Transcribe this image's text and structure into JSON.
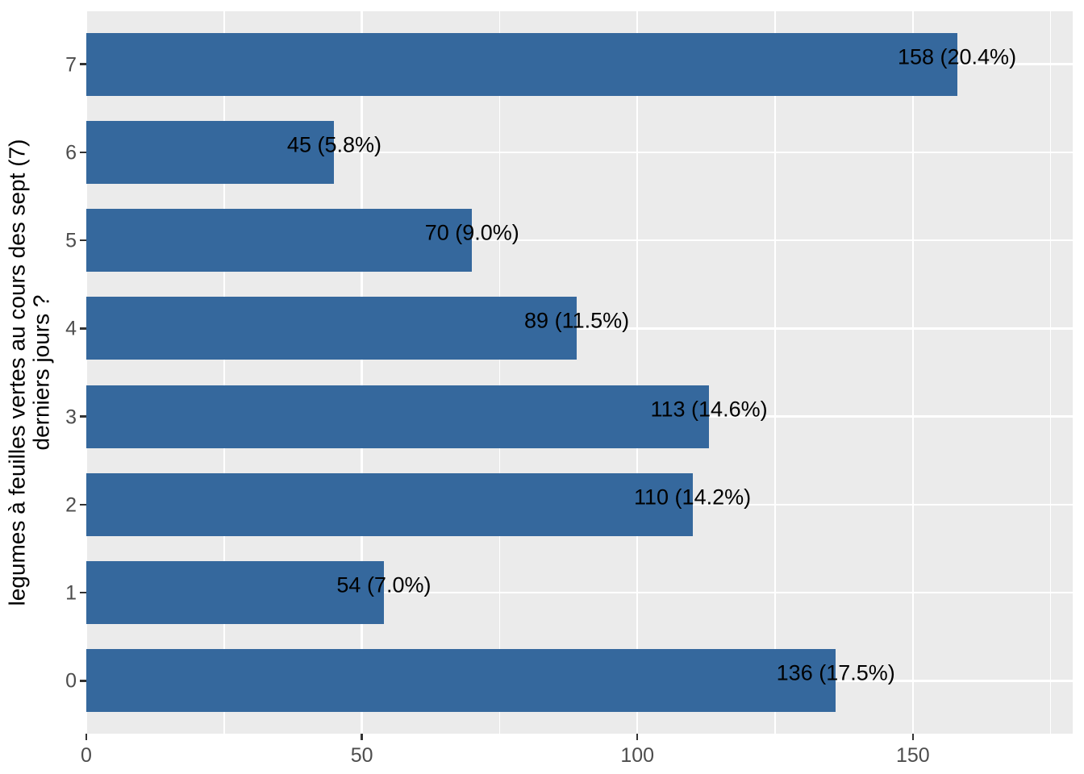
{
  "chart_data": {
    "type": "bar",
    "orientation": "horizontal",
    "title": "",
    "xlabel": "",
    "ylabel_lines": [
      "legumes à feuilles vertes au cours des sept (7)",
      "derniers jours ?"
    ],
    "categories": [
      "7",
      "6",
      "5",
      "4",
      "3",
      "2",
      "1",
      "0"
    ],
    "values": [
      158,
      45,
      70,
      89,
      113,
      110,
      54,
      136
    ],
    "bar_labels": [
      "158 (20.4%)",
      "45 (5.8%)",
      "70 (9.0%)",
      "89 (11.5%)",
      "113 (14.6%)",
      "110 (14.2%)",
      "54 (7.0%)",
      "136 (17.5%)"
    ],
    "x_ticks": [
      0,
      50,
      100,
      150
    ],
    "x_minor_ticks": [
      25,
      75,
      125,
      175
    ],
    "xlim": [
      0,
      179
    ],
    "grid": "white major gridlines at x ticks and at category centers, white minor gridlines between x ticks, on gray panel",
    "legend": "none",
    "colors": {
      "bar_fill": "#35689D",
      "panel_background": "#EBEBEB",
      "gridline": "#FFFFFF",
      "tick_label": "#4D4D4D",
      "tick_mark": "#333333",
      "bar_label_text": "#000000",
      "axis_title_text": "#000000",
      "figure_background": "#FFFFFF"
    }
  }
}
